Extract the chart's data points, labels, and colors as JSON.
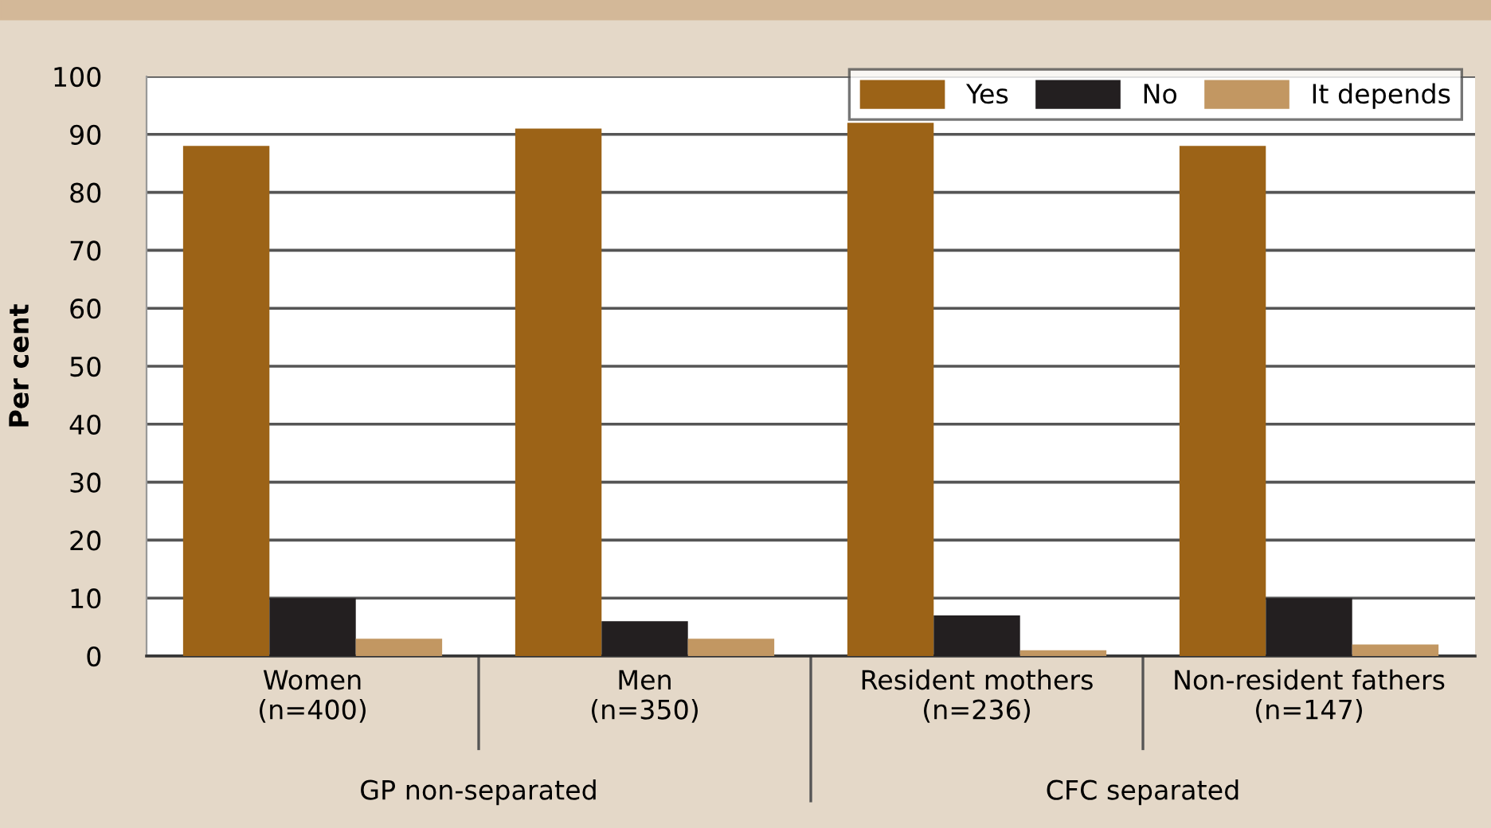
{
  "chart_data": {
    "type": "bar",
    "ylabel": "Per cent",
    "categories": [
      "Women\n(n=400)",
      "Men\n(n=350)",
      "Resident mothers\n(n=236)",
      "Non-resident fathers\n(n=147)"
    ],
    "series": [
      {
        "name": "Yes",
        "color": "#9c6317",
        "values": [
          88,
          91,
          92,
          88
        ]
      },
      {
        "name": "No",
        "color": "#231f20",
        "values": [
          10,
          6,
          7,
          10
        ]
      },
      {
        "name": "It depends",
        "color": "#c29762",
        "values": [
          3,
          3,
          1,
          2
        ]
      }
    ],
    "ylim": [
      0,
      100
    ],
    "yticks": [
      0,
      10,
      20,
      30,
      40,
      50,
      60,
      70,
      80,
      90,
      100
    ],
    "grid": "y",
    "legend": "top right",
    "annotations": [
      "GP non-separated",
      "CFC separated"
    ]
  }
}
